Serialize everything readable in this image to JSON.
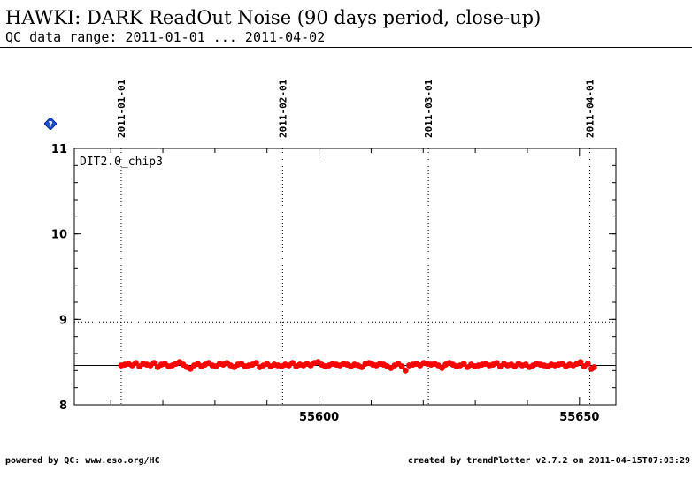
{
  "header": {
    "title": "HAWKI: DARK ReadOut Noise (90 days period, close-up)",
    "subtitle": "QC data range: 2011-01-01 ... 2011-04-02"
  },
  "footer": {
    "left": "powered by QC: www.eso.org/HC",
    "right": "created by trendPlotter v2.7.2 on 2011-04-15T07:03:29"
  },
  "help_icon": {
    "label": "?",
    "color": "#1a4fd6"
  },
  "chart_data": {
    "type": "scatter",
    "panel_label": "DIT2.0_chip3",
    "x_range": [
      55553,
      55657
    ],
    "y_range": [
      8,
      11
    ],
    "y_ticks": [
      8,
      9,
      10,
      11
    ],
    "x_ticks": [
      55600,
      55650
    ],
    "date_markers": [
      {
        "label": "2011-01-01",
        "x": 55562
      },
      {
        "label": "2011-02-01",
        "x": 55593
      },
      {
        "label": "2011-03-01",
        "x": 55621
      },
      {
        "label": "2011-04-01",
        "x": 55652
      }
    ],
    "reference_lines": {
      "solid": 8.46,
      "dotted": 8.97
    },
    "point_color": "#ff0000",
    "series": [
      {
        "x": [
          55562.0,
          55562.7,
          55563.4,
          55564.1,
          55564.8,
          55565.5,
          55566.2,
          55566.9,
          55567.6,
          55568.3,
          55569.0,
          55569.7,
          55570.4,
          55571.1,
          55571.8,
          55572.5,
          55573.2,
          55573.9,
          55574.6,
          55575.3,
          55576.0,
          55576.7,
          55577.4,
          55578.1,
          55578.8,
          55579.5,
          55580.2,
          55580.9,
          55581.6,
          55582.3,
          55583.0,
          55583.7,
          55584.4,
          55585.1,
          55585.8,
          55586.5,
          55587.2,
          55587.9,
          55588.6,
          55589.3,
          55590.0,
          55590.7,
          55591.4,
          55592.1,
          55592.8,
          55593.5,
          55594.2,
          55594.9,
          55595.6,
          55596.3,
          55597.0,
          55597.7,
          55598.4,
          55599.1,
          55599.8,
          55600.5,
          55601.2,
          55601.9,
          55602.6,
          55603.3,
          55604.0,
          55604.7,
          55605.4,
          55606.1,
          55606.8,
          55607.5,
          55608.2,
          55608.9,
          55609.6,
          55610.3,
          55611.0,
          55611.7,
          55612.4,
          55613.1,
          55613.8,
          55614.5,
          55615.2,
          55615.9,
          55616.6,
          55617.3,
          55618.0,
          55618.7,
          55619.4,
          55620.1,
          55620.8,
          55621.5,
          55622.2,
          55622.9,
          55623.6,
          55624.3,
          55625.0,
          55625.7,
          55626.4,
          55627.1,
          55627.8,
          55628.5,
          55629.2,
          55629.9,
          55630.6,
          55631.3,
          55632.0,
          55632.7,
          55633.4,
          55634.1,
          55634.8,
          55635.5,
          55636.2,
          55636.9,
          55637.6,
          55638.3,
          55639.0,
          55639.7,
          55640.4,
          55641.1,
          55641.8,
          55642.5,
          55643.2,
          55643.9,
          55644.6,
          55645.3,
          55646.0,
          55646.7,
          55647.4,
          55648.1,
          55648.8,
          55649.5,
          55650.2,
          55650.9,
          55651.6,
          55652.3,
          55652.8
        ],
        "y": [
          8.46,
          8.47,
          8.48,
          8.46,
          8.49,
          8.45,
          8.48,
          8.47,
          8.46,
          8.49,
          8.44,
          8.47,
          8.48,
          8.45,
          8.46,
          8.48,
          8.5,
          8.47,
          8.44,
          8.42,
          8.46,
          8.48,
          8.45,
          8.47,
          8.49,
          8.46,
          8.45,
          8.48,
          8.47,
          8.49,
          8.46,
          8.44,
          8.47,
          8.48,
          8.45,
          8.46,
          8.47,
          8.49,
          8.44,
          8.46,
          8.48,
          8.45,
          8.47,
          8.46,
          8.45,
          8.47,
          8.46,
          8.49,
          8.45,
          8.47,
          8.46,
          8.48,
          8.46,
          8.49,
          8.5,
          8.47,
          8.45,
          8.46,
          8.48,
          8.47,
          8.46,
          8.48,
          8.47,
          8.45,
          8.47,
          8.46,
          8.44,
          8.48,
          8.49,
          8.47,
          8.46,
          8.48,
          8.47,
          8.45,
          8.43,
          8.46,
          8.48,
          8.45,
          8.4,
          8.46,
          8.47,
          8.48,
          8.46,
          8.49,
          8.48,
          8.47,
          8.48,
          8.46,
          8.43,
          8.47,
          8.49,
          8.47,
          8.45,
          8.46,
          8.48,
          8.44,
          8.47,
          8.45,
          8.46,
          8.47,
          8.48,
          8.46,
          8.47,
          8.49,
          8.45,
          8.48,
          8.46,
          8.47,
          8.45,
          8.48,
          8.46,
          8.47,
          8.44,
          8.46,
          8.48,
          8.47,
          8.46,
          8.45,
          8.47,
          8.46,
          8.47,
          8.48,
          8.45,
          8.47,
          8.46,
          8.48,
          8.5,
          8.45,
          8.48,
          8.42,
          8.44
        ]
      }
    ]
  }
}
